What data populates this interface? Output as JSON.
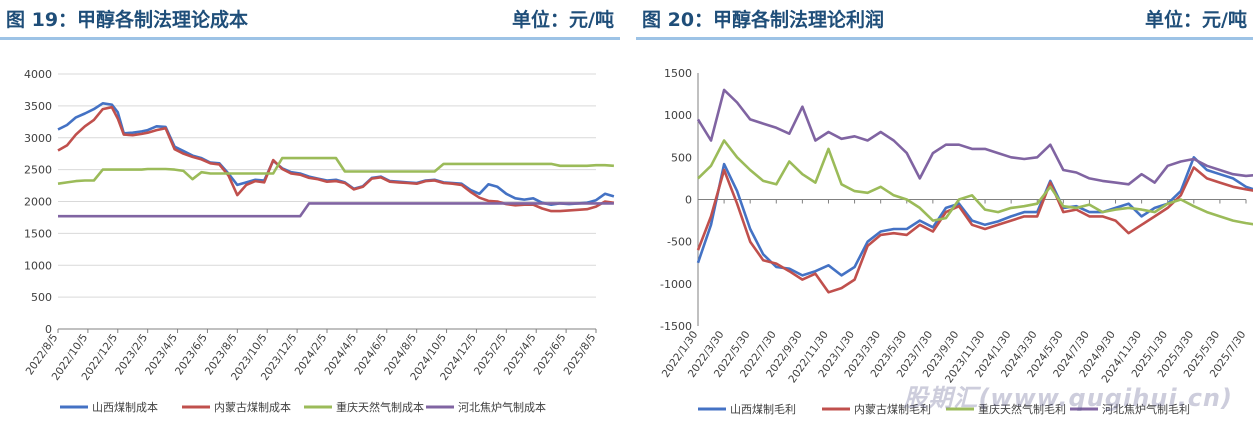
{
  "left": {
    "title": "图 19：甲醇各制法理论成本",
    "unit": "单位：元/吨"
  },
  "right": {
    "title": "图 20：甲醇各制法理论利润",
    "unit": "单位：元/吨"
  },
  "watermark": "股期汇(www.qugihui.cn)",
  "chart_data": [
    {
      "type": "line",
      "title": "",
      "xlabel": "",
      "ylabel": "",
      "ylim": [
        0,
        4000
      ],
      "yticks": [
        0,
        500,
        1000,
        1500,
        2000,
        2500,
        3000,
        3500,
        4000
      ],
      "x_tick_labels": [
        "2022/8/5",
        "2022/10/5",
        "2022/12/5",
        "2023/2/5",
        "2023/4/5",
        "2023/6/5",
        "2023/8/5",
        "2023/10/5",
        "2023/12/5",
        "2024/2/5",
        "2024/4/5",
        "2024/6/5",
        "2024/8/5",
        "2024/10/5",
        "2024/12/5",
        "2025/2/5",
        "2025/4/5",
        "2025/6/5",
        "2025/8/5"
      ],
      "x": [
        0,
        0.3,
        0.6,
        0.9,
        1.2,
        1.5,
        1.8,
        2.0,
        2.2,
        2.5,
        2.8,
        3.0,
        3.3,
        3.6,
        3.9,
        4.2,
        4.5,
        4.8,
        5.1,
        5.4,
        5.7,
        6.0,
        6.3,
        6.6,
        6.9,
        7.2,
        7.5,
        7.8,
        8.1,
        8.4,
        8.7,
        9.0,
        9.3,
        9.6,
        9.9,
        10.2,
        10.5,
        10.8,
        11.1,
        11.4,
        11.7,
        12.0,
        12.3,
        12.6,
        12.9,
        13.2,
        13.5,
        13.8,
        14.1,
        14.4,
        14.7,
        15.0,
        15.3,
        15.6,
        15.9,
        16.2,
        16.5,
        16.8,
        17.1,
        17.4,
        17.7,
        18.0,
        18.3,
        18.6
      ],
      "legend_position": "bottom",
      "grid": "horizontal",
      "series": [
        {
          "name": "山西煤制成本",
          "color": "#4472c4",
          "values": [
            3130,
            3200,
            3320,
            3380,
            3450,
            3540,
            3520,
            3400,
            3070,
            3080,
            3100,
            3120,
            3180,
            3170,
            2860,
            2790,
            2720,
            2680,
            2610,
            2600,
            2440,
            2260,
            2300,
            2340,
            2330,
            2640,
            2520,
            2460,
            2440,
            2390,
            2360,
            2330,
            2340,
            2300,
            2200,
            2240,
            2370,
            2390,
            2320,
            2310,
            2300,
            2290,
            2330,
            2340,
            2300,
            2290,
            2280,
            2180,
            2120,
            2270,
            2230,
            2120,
            2050,
            2030,
            2050,
            1980,
            1950,
            1970,
            1960,
            1970,
            1980,
            2020,
            2120,
            2080
          ]
        },
        {
          "name": "内蒙古煤制成本",
          "color": "#c0504d",
          "values": [
            2800,
            2880,
            3050,
            3180,
            3280,
            3450,
            3480,
            3300,
            3050,
            3040,
            3060,
            3080,
            3120,
            3150,
            2820,
            2750,
            2700,
            2660,
            2600,
            2580,
            2410,
            2100,
            2260,
            2320,
            2300,
            2650,
            2510,
            2440,
            2420,
            2370,
            2350,
            2310,
            2320,
            2290,
            2190,
            2230,
            2360,
            2380,
            2310,
            2300,
            2290,
            2280,
            2320,
            2330,
            2290,
            2280,
            2260,
            2150,
            2060,
            2010,
            2000,
            1960,
            1940,
            1950,
            1950,
            1890,
            1850,
            1850,
            1860,
            1870,
            1880,
            1920,
            2000,
            1980
          ]
        },
        {
          "name": "重庆天然气制成本",
          "color": "#9bbb59",
          "values": [
            2280,
            2300,
            2320,
            2330,
            2330,
            2500,
            2500,
            2500,
            2500,
            2500,
            2500,
            2510,
            2510,
            2510,
            2500,
            2480,
            2350,
            2460,
            2440,
            2440,
            2440,
            2440,
            2440,
            2440,
            2440,
            2440,
            2680,
            2680,
            2680,
            2680,
            2680,
            2680,
            2680,
            2470,
            2470,
            2470,
            2470,
            2470,
            2470,
            2470,
            2470,
            2470,
            2470,
            2470,
            2590,
            2590,
            2590,
            2590,
            2590,
            2590,
            2590,
            2590,
            2590,
            2590,
            2590,
            2590,
            2590,
            2560,
            2560,
            2560,
            2560,
            2570,
            2570,
            2560
          ]
        },
        {
          "name": "河北焦炉气制成本",
          "color": "#8064a2",
          "values": [
            1770,
            1770,
            1770,
            1770,
            1770,
            1770,
            1770,
            1770,
            1770,
            1770,
            1770,
            1770,
            1770,
            1770,
            1770,
            1770,
            1770,
            1770,
            1770,
            1770,
            1770,
            1770,
            1770,
            1770,
            1770,
            1770,
            1770,
            1770,
            1770,
            1970,
            1970,
            1970,
            1970,
            1970,
            1970,
            1970,
            1970,
            1970,
            1970,
            1970,
            1970,
            1970,
            1970,
            1970,
            1970,
            1970,
            1970,
            1970,
            1970,
            1970,
            1970,
            1970,
            1970,
            1970,
            1970,
            1970,
            1970,
            1970,
            1970,
            1970,
            1970,
            1970,
            1970,
            1970
          ]
        }
      ]
    },
    {
      "type": "line",
      "title": "",
      "xlabel": "",
      "ylabel": "",
      "ylim": [
        -1500,
        1500
      ],
      "yticks": [
        -1500,
        -1000,
        -500,
        0,
        500,
        1000,
        1500
      ],
      "x_tick_labels": [
        "2022/1/30",
        "2022/3/30",
        "2022/5/30",
        "2022/7/30",
        "2022/9/30",
        "2022/11/30",
        "2023/1/30",
        "2023/3/30",
        "2023/5/30",
        "2023/7/30",
        "2023/9/30",
        "2023/11/30",
        "2024/1/30",
        "2024/3/30",
        "2024/5/30",
        "2024/7/30",
        "2024/9/30",
        "2024/11/30",
        "2025/1/30",
        "2025/3/30",
        "2025/5/30",
        "2025/7/30"
      ],
      "x": [
        0,
        0.5,
        1.0,
        1.5,
        2.0,
        2.5,
        3.0,
        3.5,
        4.0,
        4.5,
        5.0,
        5.5,
        6.0,
        6.5,
        7.0,
        7.5,
        8.0,
        8.5,
        9.0,
        9.5,
        10.0,
        10.5,
        11.0,
        11.5,
        12.0,
        12.5,
        13.0,
        13.5,
        14.0,
        14.5,
        15.0,
        15.5,
        16.0,
        16.5,
        17.0,
        17.5,
        18.0,
        18.5,
        19.0,
        19.5,
        20.0,
        20.5,
        21.0,
        21.4
      ],
      "legend_position": "bottom",
      "grid": "none",
      "series": [
        {
          "name": "山西煤制毛利",
          "color": "#4472c4",
          "values": [
            -750,
            -300,
            420,
            100,
            -350,
            -650,
            -800,
            -820,
            -900,
            -850,
            -780,
            -900,
            -800,
            -500,
            -380,
            -350,
            -350,
            -250,
            -330,
            -100,
            -50,
            -250,
            -300,
            -260,
            -200,
            -150,
            -150,
            220,
            -100,
            -80,
            -150,
            -150,
            -100,
            -50,
            -200,
            -100,
            -50,
            100,
            500,
            350,
            300,
            250,
            150,
            110
          ]
        },
        {
          "name": "内蒙古煤制毛利",
          "color": "#c0504d",
          "values": [
            -600,
            -200,
            350,
            -50,
            -500,
            -720,
            -760,
            -850,
            -950,
            -880,
            -1100,
            -1050,
            -950,
            -550,
            -420,
            -400,
            -420,
            -300,
            -380,
            -150,
            -80,
            -300,
            -350,
            -300,
            -250,
            -200,
            -200,
            200,
            -150,
            -120,
            -200,
            -200,
            -250,
            -400,
            -300,
            -200,
            -100,
            50,
            380,
            250,
            200,
            150,
            120,
            100
          ]
        },
        {
          "name": "重庆天然气制毛利",
          "color": "#9bbb59",
          "values": [
            250,
            400,
            700,
            500,
            350,
            220,
            180,
            450,
            300,
            200,
            600,
            180,
            100,
            80,
            150,
            50,
            0,
            -100,
            -250,
            -220,
            0,
            50,
            -120,
            -150,
            -100,
            -80,
            -50,
            150,
            -80,
            -100,
            -60,
            -150,
            -120,
            -100,
            -120,
            -150,
            -50,
            0,
            -80,
            -150,
            -200,
            -250,
            -280,
            -300
          ]
        },
        {
          "name": "河北焦炉气制毛利",
          "color": "#8064a2",
          "values": [
            950,
            700,
            1300,
            1150,
            950,
            900,
            850,
            780,
            1100,
            700,
            800,
            720,
            750,
            700,
            800,
            700,
            550,
            250,
            550,
            650,
            650,
            600,
            600,
            550,
            500,
            480,
            500,
            650,
            350,
            320,
            250,
            220,
            200,
            180,
            300,
            200,
            400,
            450,
            480,
            400,
            350,
            300,
            280,
            290
          ]
        }
      ]
    }
  ]
}
